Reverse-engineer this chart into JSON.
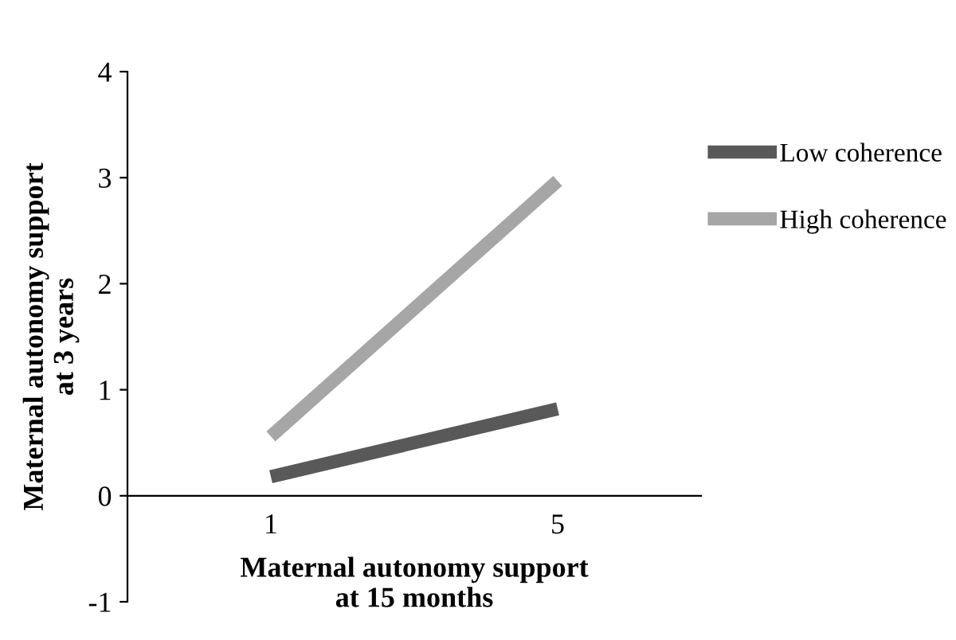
{
  "chart_data": {
    "type": "line",
    "categories": [
      "1",
      "5"
    ],
    "xlabel": "Maternal autonomy support\nat 15 months",
    "ylabel": "Maternal autonomy support\nat 3 years",
    "series": [
      {
        "name": "Low coherence",
        "color": "#595959",
        "values": [
          0.18,
          0.82
        ]
      },
      {
        "name": "High coherence",
        "color": "#a6a6a6",
        "values": [
          0.56,
          2.97
        ]
      }
    ],
    "ylim": [
      -1,
      4
    ],
    "yticks": [
      -1,
      0,
      1,
      2,
      3,
      4
    ],
    "grid": false,
    "legend": "right",
    "marker": "none",
    "line_style": "solid"
  }
}
